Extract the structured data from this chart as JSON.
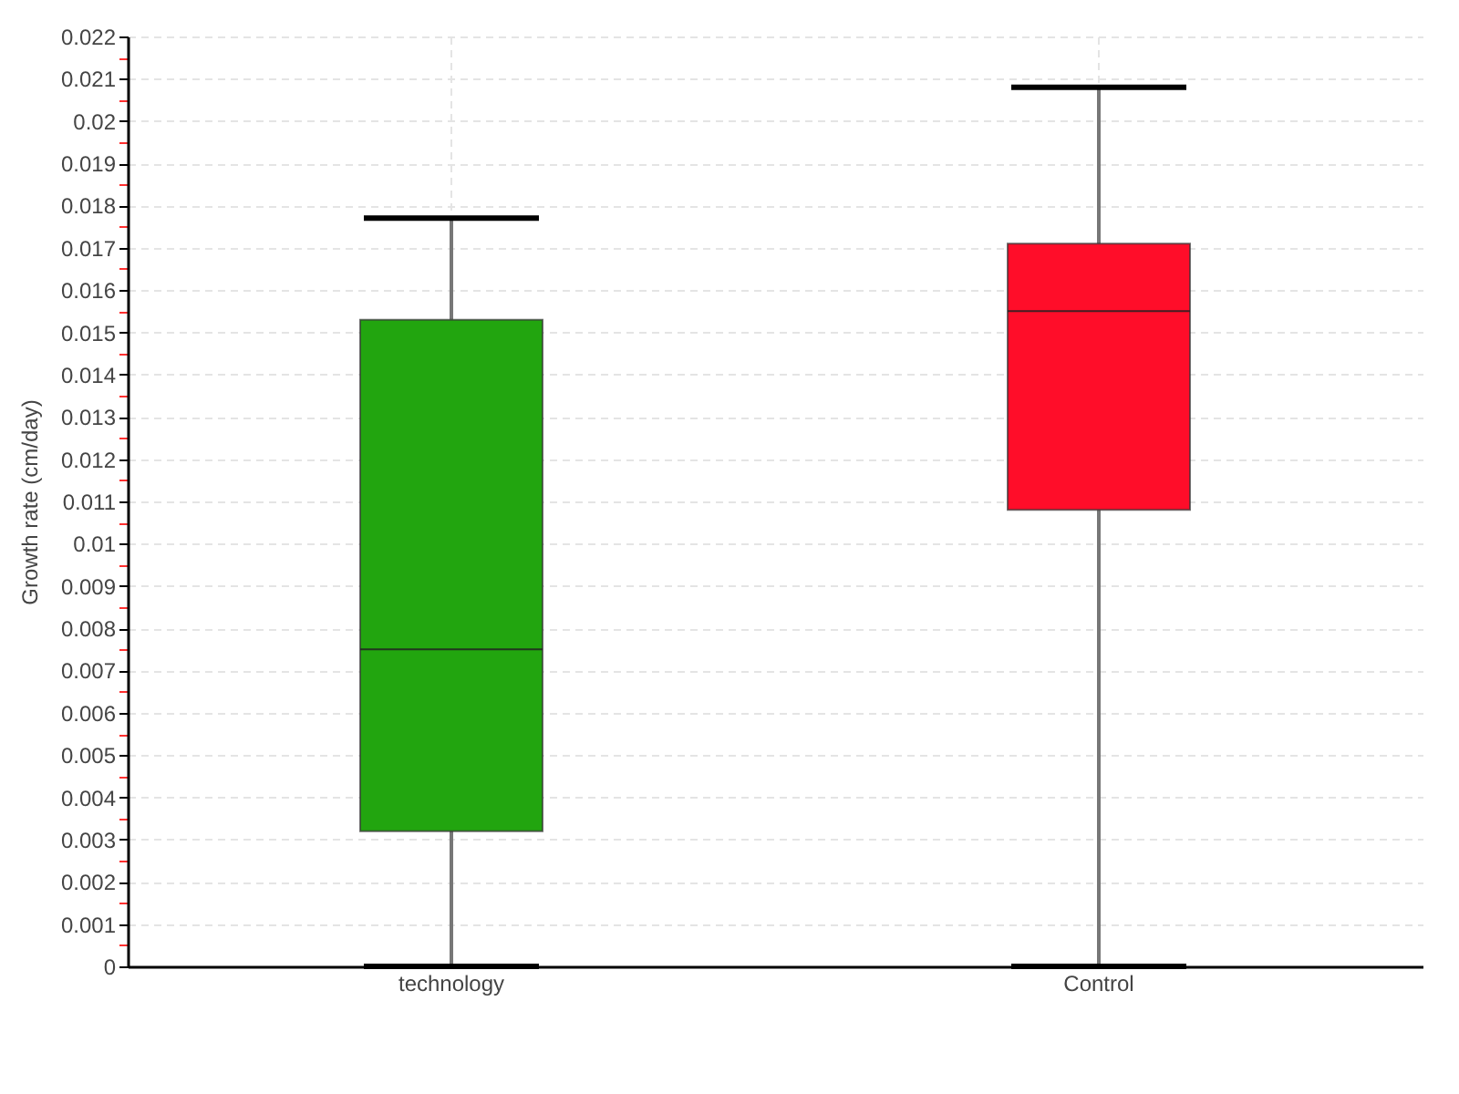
{
  "chart_data": {
    "type": "box",
    "ylabel": "Growth rate (cm/day)",
    "categories": [
      "technology",
      "Control"
    ],
    "colors": [
      "#22a50f",
      "#ff0d29"
    ],
    "boxes": [
      {
        "low": 0,
        "q1": 0.0032,
        "median": 0.0075,
        "q3": 0.0153,
        "high": 0.0177
      },
      {
        "low": 0,
        "q1": 0.0108,
        "median": 0.0155,
        "q3": 0.0171,
        "high": 0.0208
      }
    ],
    "ylim": [
      0,
      0.022
    ],
    "yticks": [
      0,
      {
        "value": 0.0005,
        "label": null
      },
      0.001,
      {
        "value": 0.0015,
        "label": null
      },
      0.002,
      {
        "value": 0.0025,
        "label": null
      },
      0.003,
      {
        "value": 0.0035,
        "label": null
      },
      0.004,
      {
        "value": 0.0045,
        "label": null
      },
      0.005,
      {
        "value": 0.0055,
        "label": null
      },
      0.006,
      {
        "value": 0.0065,
        "label": null
      },
      0.007,
      {
        "value": 0.0075,
        "label": null
      },
      0.008,
      {
        "value": 0.0085,
        "label": null
      },
      0.009,
      {
        "value": 0.0095,
        "label": null
      },
      0.01,
      {
        "value": 0.0105,
        "label": null
      },
      0.011,
      {
        "value": 0.0115,
        "label": null
      },
      0.012,
      {
        "value": 0.0125,
        "label": null
      },
      0.013,
      {
        "value": 0.0135,
        "label": null
      },
      0.014,
      {
        "value": 0.0145,
        "label": null
      },
      0.015,
      {
        "value": 0.0155,
        "label": null
      },
      0.016,
      {
        "value": 0.0165,
        "label": null
      },
      0.017,
      {
        "value": 0.0175,
        "label": null
      },
      0.018,
      {
        "value": 0.0185,
        "label": null
      },
      0.019,
      {
        "value": 0.0195,
        "label": null
      },
      0.02,
      {
        "value": 0.0205,
        "label": null
      },
      0.021,
      {
        "value": 0.0215,
        "label": null
      },
      0.022
    ],
    "grid": true
  }
}
